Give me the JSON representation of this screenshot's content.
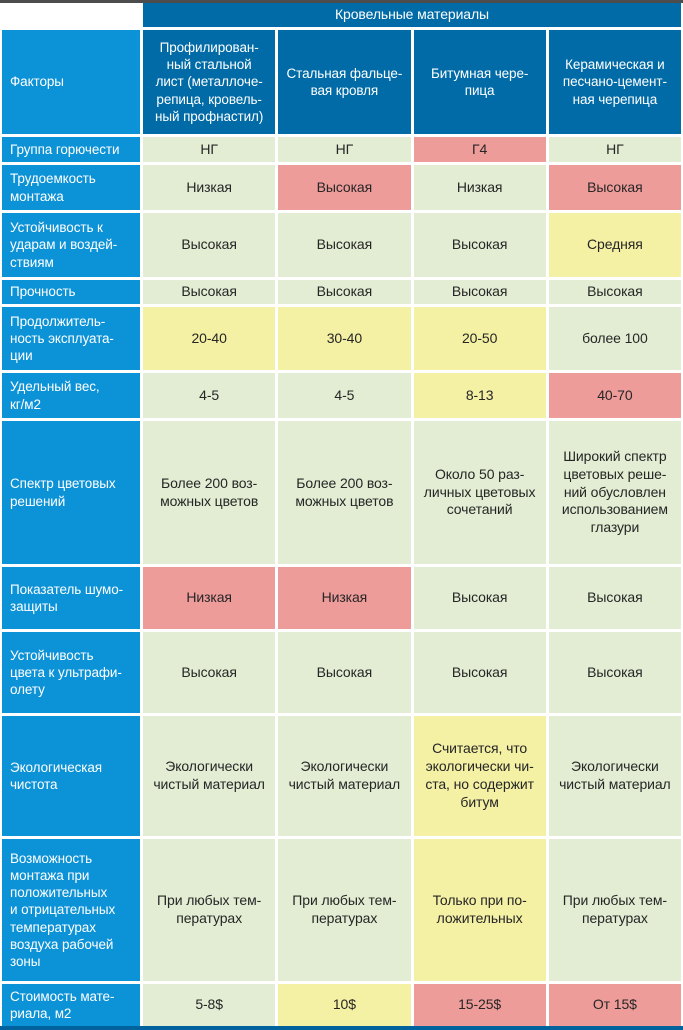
{
  "table": {
    "top_header": "Кровельные материалы",
    "factors_header": "Факторы",
    "columns": [
      "Профилирован-\nный стальной\nлист (металлоче-\nрепица, кровель-\nный профнастил)",
      "Стальная фальце-\nвая кровля",
      "Битумная чере-\nпица",
      "Керамическая и\nпесчано-цемент-\nная черепица"
    ],
    "rows": [
      {
        "label": "Группа горючести",
        "cells": [
          {
            "text": "НГ",
            "color": "green"
          },
          {
            "text": "НГ",
            "color": "green"
          },
          {
            "text": "Г4",
            "color": "pink"
          },
          {
            "text": "НГ",
            "color": "green"
          }
        ]
      },
      {
        "label": "Трудоемкость\nмонтажа",
        "cells": [
          {
            "text": "Низкая",
            "color": "green"
          },
          {
            "text": "Высокая",
            "color": "pink"
          },
          {
            "text": "Низкая",
            "color": "green"
          },
          {
            "text": "Высокая",
            "color": "pink"
          }
        ]
      },
      {
        "label": "Устойчивость к\nударам и воздей-\nствиям",
        "cells": [
          {
            "text": "Высокая",
            "color": "green"
          },
          {
            "text": "Высокая",
            "color": "green"
          },
          {
            "text": "Высокая",
            "color": "green"
          },
          {
            "text": "Средняя",
            "color": "yellow"
          }
        ]
      },
      {
        "label": "Прочность",
        "cells": [
          {
            "text": "Высокая",
            "color": "green"
          },
          {
            "text": "Высокая",
            "color": "green"
          },
          {
            "text": "Высокая",
            "color": "green"
          },
          {
            "text": "Высокая",
            "color": "green"
          }
        ]
      },
      {
        "label": "Продолжитель-\nность эксплуата-\nции",
        "cells": [
          {
            "text": "20-40",
            "color": "yellow"
          },
          {
            "text": "30-40",
            "color": "yellow"
          },
          {
            "text": "20-50",
            "color": "yellow"
          },
          {
            "text": "более 100",
            "color": "green"
          }
        ]
      },
      {
        "label": "Удельный вес,\nкг/м2",
        "cells": [
          {
            "text": "4-5",
            "color": "green"
          },
          {
            "text": "4-5",
            "color": "green"
          },
          {
            "text": "8-13",
            "color": "yellow"
          },
          {
            "text": "40-70",
            "color": "pink"
          }
        ]
      },
      {
        "label": "Спектр цветовых\nрешений",
        "cells": [
          {
            "text": "Более 200 воз-\nможных цветов",
            "color": "green"
          },
          {
            "text": "Более 200 воз-\nможных цветов",
            "color": "green"
          },
          {
            "text": "Около 50 раз-\nличных цветовых\nсочетаний",
            "color": "green"
          },
          {
            "text": "Широкий спектр\nцветовых реше-\nний обусловлен\nиспользованием\nглазури",
            "color": "green"
          }
        ]
      },
      {
        "label": "Показатель шумо-\nзащиты",
        "cells": [
          {
            "text": "Низкая",
            "color": "pink"
          },
          {
            "text": "Низкая",
            "color": "pink"
          },
          {
            "text": "Высокая",
            "color": "green"
          },
          {
            "text": "Высокая",
            "color": "green"
          }
        ]
      },
      {
        "label": "Устойчивость\nцвета к ультрафи-\nолету",
        "cells": [
          {
            "text": "Высокая",
            "color": "green"
          },
          {
            "text": "Высокая",
            "color": "green"
          },
          {
            "text": "Высокая",
            "color": "green"
          },
          {
            "text": "Высокая",
            "color": "green"
          }
        ]
      },
      {
        "label": "Экологическая\nчистота",
        "cells": [
          {
            "text": "Экологически\nчистый материал",
            "color": "green"
          },
          {
            "text": "Экологически\nчистый материал",
            "color": "green"
          },
          {
            "text": "Считается, что\nэкологически чи-\nста, но содержит\nбитум",
            "color": "yellow"
          },
          {
            "text": "Экологически\nчистый материал",
            "color": "green"
          }
        ]
      },
      {
        "label": "Возможность\nмонтажа при\nположительных\nи отрицательных\nтемпературах\nвоздуха рабочей\nзоны",
        "cells": [
          {
            "text": "При любых тем-\nпературах",
            "color": "green"
          },
          {
            "text": "При любых тем-\nпературах",
            "color": "green"
          },
          {
            "text": "Только при по-\nложительных",
            "color": "yellow"
          },
          {
            "text": "При любых тем-\nпературах",
            "color": "green"
          }
        ]
      },
      {
        "label": "Стоимость мате-\nриала, м2",
        "cells": [
          {
            "text": "5-8$",
            "color": "green"
          },
          {
            "text": "10$",
            "color": "yellow"
          },
          {
            "text": "15-25$",
            "color": "pink"
          },
          {
            "text": "От 15$",
            "color": "pink"
          }
        ]
      }
    ]
  },
  "colors": {
    "green": "#e2edd3",
    "yellow": "#f4f0a4",
    "pink": "#ee9c9a",
    "header_blue": "#006ba7",
    "label_blue": "#0c92d6",
    "top_bar": "#4d4d4d",
    "bottom_bar": "#00639e",
    "corner_white": "#ffffff"
  }
}
